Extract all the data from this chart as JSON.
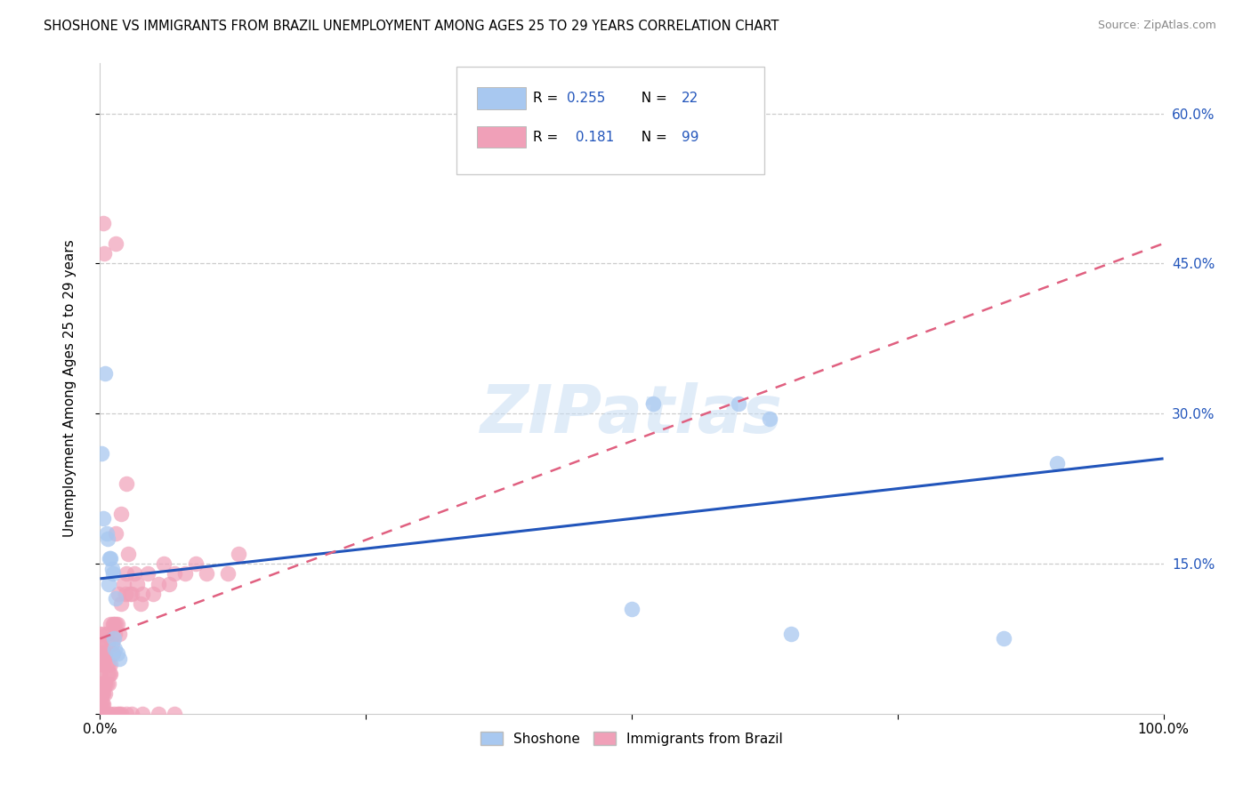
{
  "title": "SHOSHONE VS IMMIGRANTS FROM BRAZIL UNEMPLOYMENT AMONG AGES 25 TO 29 YEARS CORRELATION CHART",
  "source": "Source: ZipAtlas.com",
  "ylabel": "Unemployment Among Ages 25 to 29 years",
  "xlim": [
    0,
    1.0
  ],
  "ylim": [
    0,
    0.65
  ],
  "color_shoshone": "#a8c8f0",
  "color_brazil": "#f0a0b8",
  "color_shoshone_line": "#2255bb",
  "color_brazil_line": "#e06080",
  "legend_color": "#2255bb",
  "shoshone_x": [
    0.001,
    0.003,
    0.005,
    0.006,
    0.007,
    0.008,
    0.009,
    0.01,
    0.011,
    0.012,
    0.013,
    0.014,
    0.015,
    0.016,
    0.018,
    0.5,
    0.52,
    0.6,
    0.63,
    0.65,
    0.85,
    0.9
  ],
  "shoshone_y": [
    0.26,
    0.195,
    0.34,
    0.18,
    0.175,
    0.13,
    0.155,
    0.155,
    0.145,
    0.14,
    0.075,
    0.065,
    0.115,
    0.06,
    0.055,
    0.105,
    0.31,
    0.31,
    0.295,
    0.08,
    0.075,
    0.25
  ],
  "brazil_x": [
    0.0,
    0.0,
    0.0,
    0.0,
    0.0,
    0.0,
    0.0,
    0.0,
    0.0,
    0.0,
    0.0,
    0.0,
    0.0,
    0.0,
    0.0,
    0.0,
    0.0,
    0.0,
    0.0,
    0.0,
    0.001,
    0.001,
    0.001,
    0.001,
    0.001,
    0.002,
    0.002,
    0.002,
    0.002,
    0.003,
    0.003,
    0.003,
    0.003,
    0.004,
    0.004,
    0.005,
    0.005,
    0.005,
    0.006,
    0.006,
    0.006,
    0.007,
    0.007,
    0.008,
    0.008,
    0.009,
    0.01,
    0.01,
    0.01,
    0.011,
    0.012,
    0.012,
    0.013,
    0.014,
    0.015,
    0.015,
    0.016,
    0.017,
    0.018,
    0.02,
    0.02,
    0.022,
    0.024,
    0.025,
    0.026,
    0.028,
    0.03,
    0.032,
    0.035,
    0.038,
    0.04,
    0.045,
    0.05,
    0.055,
    0.06,
    0.065,
    0.07,
    0.08,
    0.09,
    0.1,
    0.12,
    0.13,
    0.003,
    0.004,
    0.015,
    0.025,
    0.002,
    0.003,
    0.008,
    0.01,
    0.013,
    0.016,
    0.018,
    0.02,
    0.025,
    0.03,
    0.04,
    0.055,
    0.07
  ],
  "brazil_y": [
    0.0,
    0.0,
    0.0,
    0.0,
    0.0,
    0.0,
    0.0,
    0.0,
    0.0,
    0.0,
    0.01,
    0.01,
    0.02,
    0.02,
    0.03,
    0.04,
    0.05,
    0.06,
    0.07,
    0.08,
    0.01,
    0.02,
    0.03,
    0.05,
    0.07,
    0.01,
    0.02,
    0.03,
    0.06,
    0.01,
    0.02,
    0.05,
    0.08,
    0.03,
    0.06,
    0.02,
    0.03,
    0.06,
    0.03,
    0.05,
    0.08,
    0.04,
    0.07,
    0.03,
    0.05,
    0.04,
    0.04,
    0.05,
    0.09,
    0.07,
    0.06,
    0.09,
    0.09,
    0.08,
    0.09,
    0.18,
    0.09,
    0.12,
    0.08,
    0.11,
    0.2,
    0.13,
    0.12,
    0.14,
    0.16,
    0.12,
    0.12,
    0.14,
    0.13,
    0.11,
    0.12,
    0.14,
    0.12,
    0.13,
    0.15,
    0.13,
    0.14,
    0.14,
    0.15,
    0.14,
    0.14,
    0.16,
    0.49,
    0.46,
    0.47,
    0.23,
    0.0,
    0.0,
    0.0,
    0.0,
    0.0,
    0.0,
    0.0,
    0.0,
    0.0,
    0.0,
    0.0,
    0.0,
    0.0
  ],
  "shoshone_line_x0": 0.0,
  "shoshone_line_y0": 0.135,
  "shoshone_line_x1": 1.0,
  "shoshone_line_y1": 0.255,
  "brazil_line_x0": 0.0,
  "brazil_line_y0": 0.075,
  "brazil_line_x1": 1.0,
  "brazil_line_y1": 0.47
}
